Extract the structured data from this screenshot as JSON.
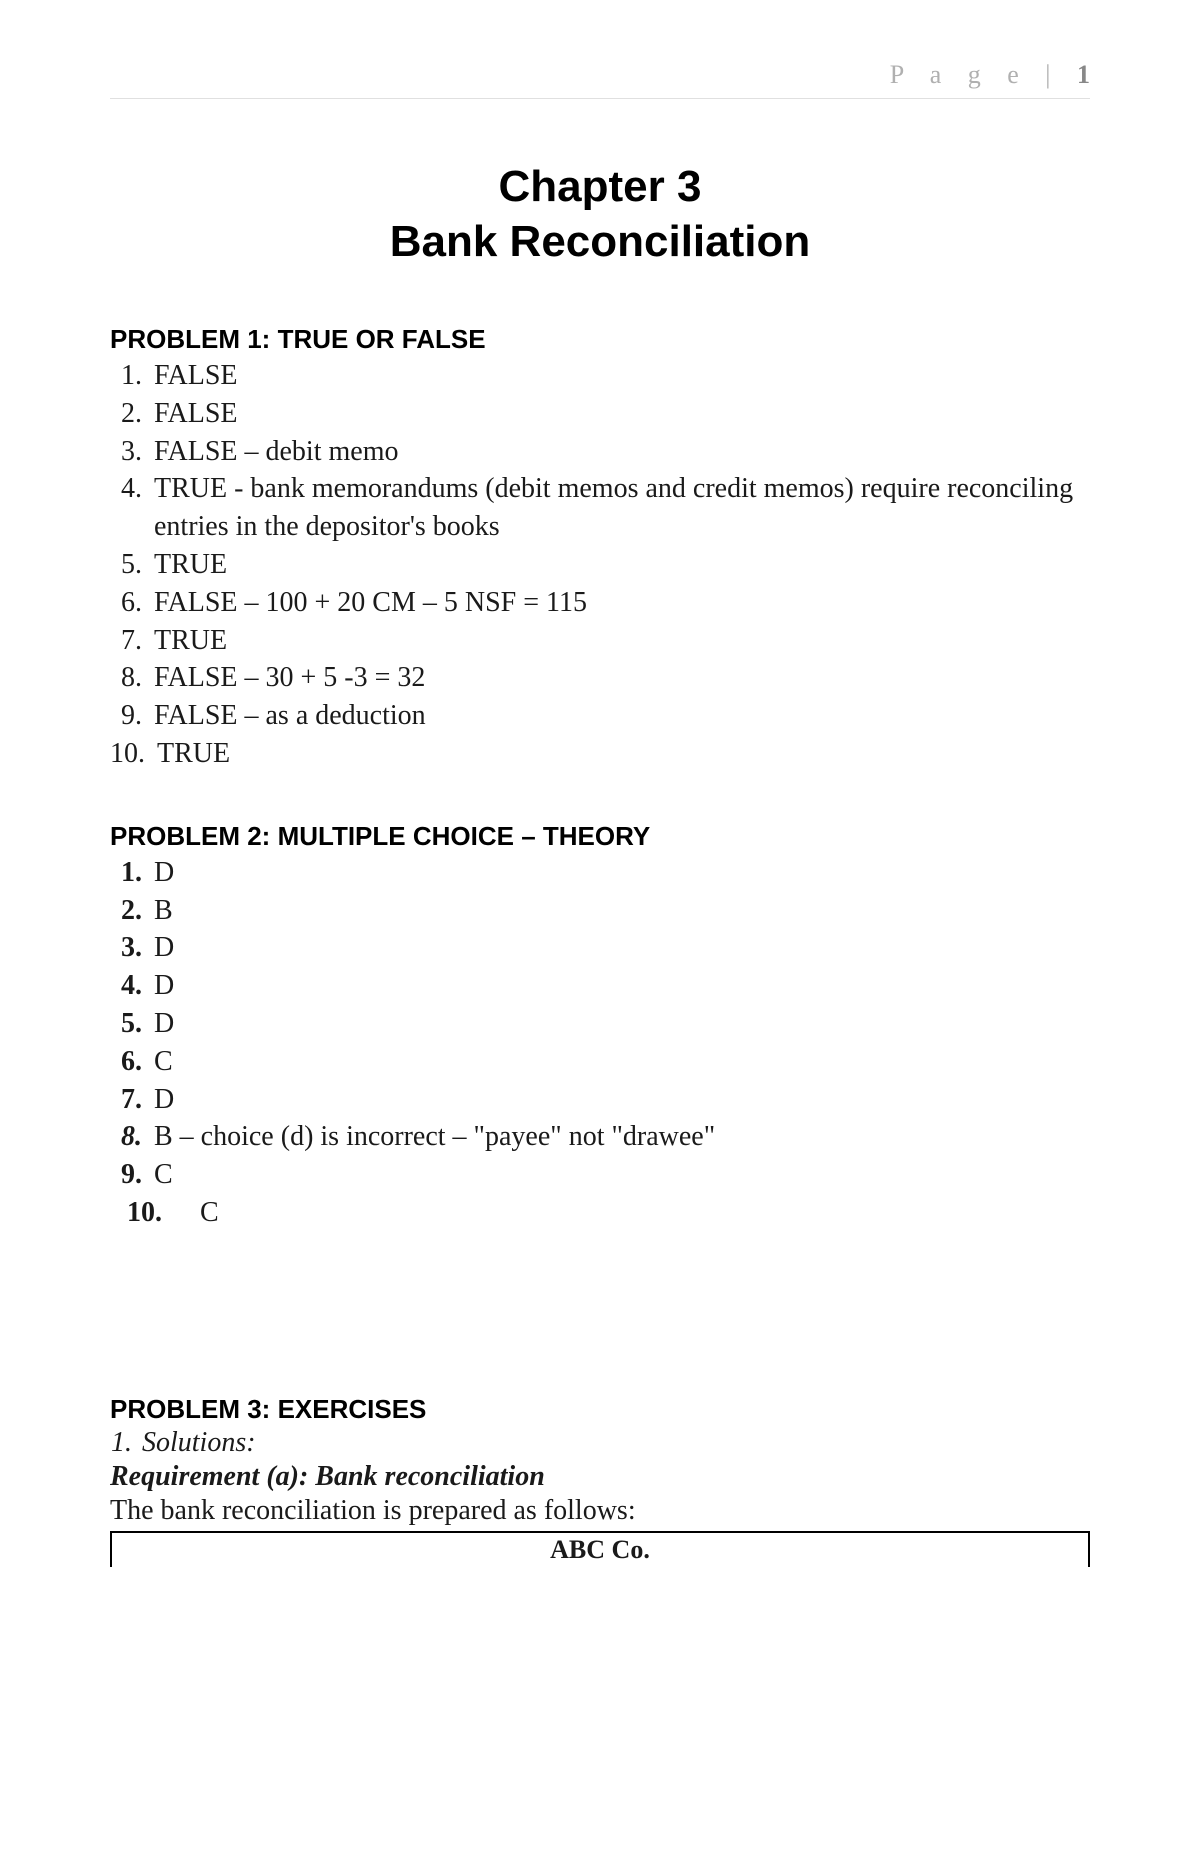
{
  "page_label": "P a g e  |",
  "page_number": "1",
  "chapter_line1": "Chapter 3",
  "chapter_line2": "Bank Reconciliation",
  "problem1": {
    "heading": "PROBLEM 1: TRUE OR FALSE",
    "items": [
      {
        "n": "1.",
        "t": "FALSE"
      },
      {
        "n": "2.",
        "t": "FALSE"
      },
      {
        "n": "3.",
        "t": "FALSE – debit memo"
      },
      {
        "n": "4.",
        "t": "TRUE - bank memorandums (debit memos and credit memos) require reconciling entries in the depositor's books"
      },
      {
        "n": "5.",
        "t": "TRUE"
      },
      {
        "n": "6.",
        "t": "FALSE – 100 + 20 CM – 5 NSF = 115"
      },
      {
        "n": "7.",
        "t": "TRUE"
      },
      {
        "n": "8.",
        "t": "FALSE – 30 + 5 -3 = 32"
      },
      {
        "n": "9.",
        "t": "FALSE – as a deduction"
      },
      {
        "n": "10.",
        "t": "TRUE"
      }
    ]
  },
  "problem2": {
    "heading": "PROBLEM 2: MULTIPLE CHOICE – THEORY",
    "items": [
      {
        "n": "1.",
        "t": "D"
      },
      {
        "n": "2.",
        "t": "B"
      },
      {
        "n": "3.",
        "t": "D"
      },
      {
        "n": "4.",
        "t": "D"
      },
      {
        "n": "5.",
        "t": "D"
      },
      {
        "n": "6.",
        "t": "C"
      },
      {
        "n": "7.",
        "t": "D"
      },
      {
        "n": "8.",
        "t": "B – choice (d) is incorrect – \"payee\" not \"drawee\"",
        "italic": true
      },
      {
        "n": "9.",
        "t": "C"
      },
      {
        "n": "10.",
        "t": "C",
        "wide": true
      }
    ]
  },
  "problem3": {
    "heading": "PROBLEM 3: EXERCISES",
    "solutions_num": "1.",
    "solutions_text": "Solutions:",
    "requirement": "Requirement (a): Bank reconciliation",
    "prepared": "The bank reconciliation is prepared as follows:",
    "company": "ABC Co."
  }
}
